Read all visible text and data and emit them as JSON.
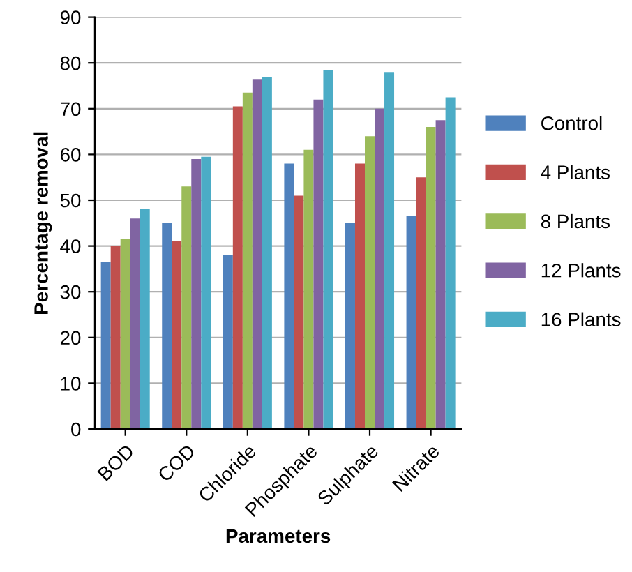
{
  "chart_data": {
    "type": "bar",
    "xlabel": "Parameters",
    "ylabel": "Percentage removal",
    "categories": [
      "BOD",
      "COD",
      "Chloride",
      "Phosphate",
      "Sulphate",
      "Nitrate"
    ],
    "series": [
      {
        "name": "Control",
        "color": "#4f81bd",
        "values": [
          36.5,
          45,
          38,
          58,
          45,
          46.5
        ]
      },
      {
        "name": "4 Plants",
        "color": "#c0504d",
        "values": [
          40,
          41,
          70.5,
          51,
          58,
          55
        ]
      },
      {
        "name": "8 Plants",
        "color": "#9bbb59",
        "values": [
          41.5,
          53,
          73.5,
          61,
          64,
          66
        ]
      },
      {
        "name": "12 Plants",
        "color": "#8064a2",
        "values": [
          46,
          59,
          76.5,
          72,
          70,
          67.5
        ]
      },
      {
        "name": "16 Plants",
        "color": "#4bacc6",
        "values": [
          48,
          59.5,
          77,
          78.5,
          78,
          72.5
        ]
      }
    ],
    "ylim": [
      0,
      90
    ],
    "yticks": [
      0,
      10,
      20,
      30,
      40,
      50,
      60,
      70,
      80,
      90
    ],
    "grid": "y",
    "legend": "right"
  }
}
